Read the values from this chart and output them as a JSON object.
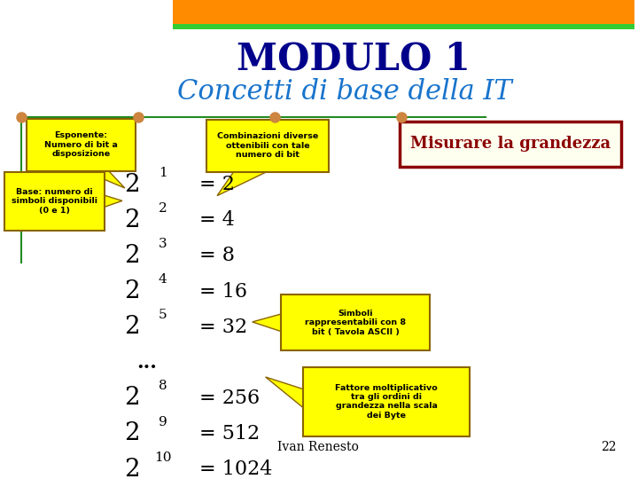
{
  "title1": "MODULO 1",
  "title2": "Concetti di base della IT",
  "title1_color": "#00008B",
  "title2_color": "#1874CD",
  "bg_color": "#FFFFFF",
  "header_bar_color": "#FF8C00",
  "header_green_color": "#32CD32",
  "esponente_label": "Esponente:\nNumero di bit a\ndisposizione",
  "base_label": "Base: numero di\nsimboli disponibili\n(0 e 1)",
  "combinazioni_label": "Combinazioni diverse\nottenibili con tale\nnumero di bit",
  "simboli_label": "Simboli\nrappresentabili con 8\nbit ( Tavola ASCII )",
  "fattore_label": "Fattore moltiplicativo\ntra gli ordini di\ngrandezza nella scala\ndei Byte",
  "misurare_label": "Misurare la grandezza",
  "powers": [
    {
      "base": "2",
      "exp": "1",
      "result": "= 2"
    },
    {
      "base": "2",
      "exp": "2",
      "result": "= 4"
    },
    {
      "base": "2",
      "exp": "3",
      "result": "= 8"
    },
    {
      "base": "2",
      "exp": "4",
      "result": "= 16"
    },
    {
      "base": "2",
      "exp": "5",
      "result": "= 32"
    },
    {
      "base": "...",
      "exp": "",
      "result": ""
    },
    {
      "base": "2",
      "exp": "8",
      "result": "= 256"
    },
    {
      "base": "2",
      "exp": "9",
      "result": "= 512"
    },
    {
      "base": "2",
      "exp": "10",
      "result": "= 1024"
    }
  ],
  "footer_text": "Ivan Renesto",
  "footer_num": "22",
  "yellow_box_color": "#FFFF00",
  "yellow_box_border": "#8B6400",
  "misurare_box_bg": "#FFFFF0",
  "misurare_box_border": "#8B0000",
  "misurare_text_color": "#8B0000",
  "math_color": "#000000",
  "line_color": "#228B22",
  "dot_color": "#CD853F"
}
